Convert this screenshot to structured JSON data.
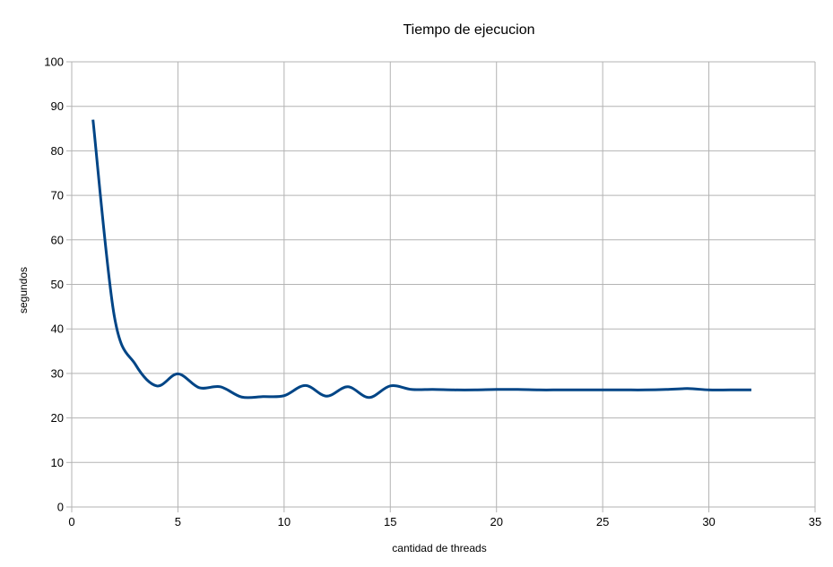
{
  "chart_data": {
    "type": "line",
    "title": "Tiempo de ejecucion",
    "xlabel": "cantidad de threads",
    "ylabel": "segundos",
    "xlim": [
      0,
      35
    ],
    "ylim": [
      0,
      100
    ],
    "xticks": [
      0,
      5,
      10,
      15,
      20,
      25,
      30,
      35
    ],
    "yticks": [
      0,
      10,
      20,
      30,
      40,
      50,
      60,
      70,
      80,
      90,
      100
    ],
    "grid": true,
    "legend": "none",
    "smooth": true,
    "series": [
      {
        "color": "#004586",
        "x": [
          1,
          2,
          3,
          4,
          5,
          6,
          7,
          8,
          9,
          10,
          11,
          12,
          13,
          14,
          15,
          16,
          17,
          18,
          19,
          20,
          21,
          22,
          23,
          24,
          25,
          26,
          27,
          28,
          29,
          30,
          31,
          32
        ],
        "y": [
          87,
          43,
          32,
          27.2,
          29.9,
          26.8,
          27,
          24.7,
          24.8,
          25,
          27.3,
          24.9,
          27,
          24.6,
          27.2,
          26.4,
          26.4,
          26.3,
          26.3,
          26.4,
          26.4,
          26.3,
          26.3,
          26.3,
          26.3,
          26.3,
          26.3,
          26.4,
          26.6,
          26.3,
          26.3,
          26.3
        ]
      }
    ]
  }
}
